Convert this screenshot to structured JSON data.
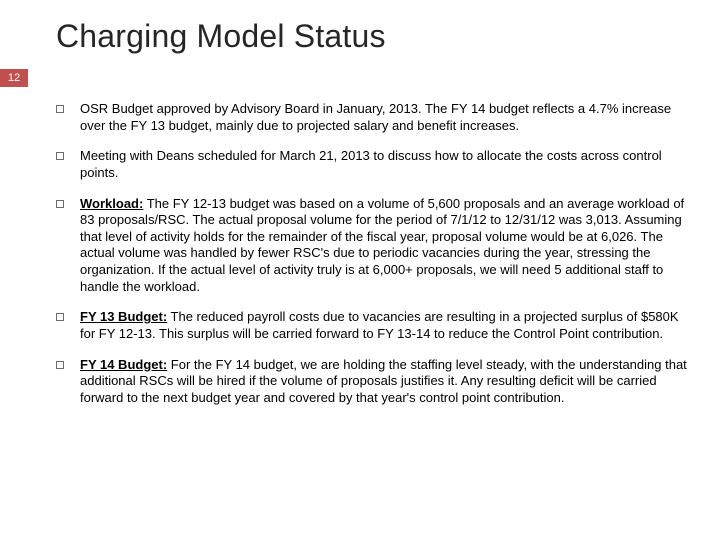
{
  "title": "Charging Model Status",
  "slide_number": "12",
  "colors": {
    "badge_bg": "#c0504d",
    "badge_text": "#ffffff",
    "title_color": "#262626",
    "body_text": "#000000",
    "bullet_border": "#6b6b6b",
    "background": "#ffffff"
  },
  "bullets": [
    {
      "plain": "OSR Budget approved by Advisory Board in January, 2013.  The FY 14 budget reflects a 4.7% increase over the FY 13 budget, mainly due to projected salary and benefit increases."
    },
    {
      "plain": "Meeting  with Deans scheduled for March 21, 2013 to discuss how to allocate the costs across control points."
    },
    {
      "lead": "Workload:",
      "rest": " The FY 12-13 budget was based on a volume of 5,600 proposals and an average workload of 83 proposals/RSC.  The actual proposal volume for the period of 7/1/12 to 12/31/12 was 3,013.  Assuming that level of activity holds for the remainder of the fiscal year, proposal volume would be at 6,026.   The actual volume was handled by fewer RSC's due to periodic vacancies during the year, stressing the organization.  If the actual level of activity truly is at 6,000+ proposals, we will need 5 additional staff to handle the workload."
    },
    {
      "lead": "FY 13 Budget:",
      "rest": " The reduced payroll costs due to vacancies are resulting in a projected surplus of $580K for FY 12-13.   This surplus will be carried forward to FY 13-14 to reduce the Control Point contribution."
    },
    {
      "lead": "FY 14 Budget:",
      "rest": " For the FY 14 budget, we are holding the staffing level steady, with the understanding that additional RSCs will be hired if the volume of proposals justifies it.  Any resulting deficit will be carried forward to the next budget year and covered by that year's control point contribution."
    }
  ]
}
